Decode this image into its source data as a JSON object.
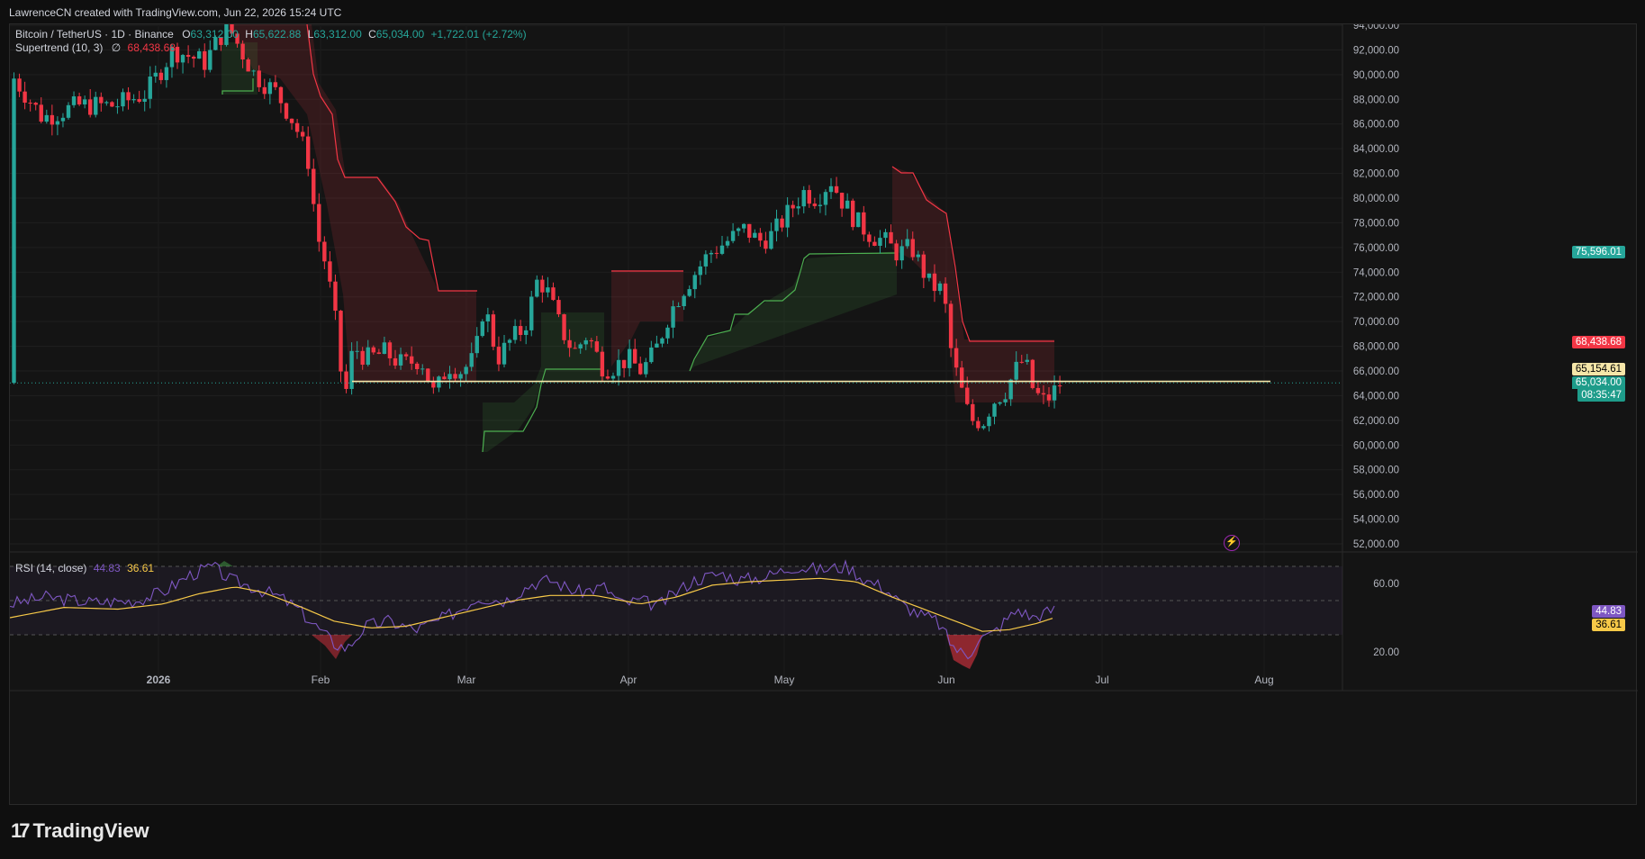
{
  "header": {
    "attribution": "LawrenceCN created with TradingView.com, Jun 22, 2026 15:24 UTC"
  },
  "symbol": {
    "name": "Bitcoin / TetherUS · 1D · Binance",
    "open_label": "O",
    "open": "63,312.00",
    "high_label": "H",
    "high": "65,622.88",
    "low_label": "L",
    "low": "63,312.00",
    "close_label": "C",
    "close": "65,034.00",
    "change": "+1,722.01 (+2.72%)"
  },
  "supertrend": {
    "label": "Supertrend (10, 3)",
    "symbol": "∅",
    "value": "68,438.68"
  },
  "rsi": {
    "label": "RSI (14, close)",
    "value1": "44.83",
    "value2": "36.61"
  },
  "price_axis": {
    "ticks": [
      "94,000.00",
      "92,000.00",
      "90,000.00",
      "88,000.00",
      "86,000.00",
      "84,000.00",
      "82,000.00",
      "80,000.00",
      "78,000.00",
      "76,000.00",
      "74,000.00",
      "72,000.00",
      "70,000.00",
      "68,000.00",
      "66,000.00",
      "64,000.00",
      "62,000.00",
      "60,000.00",
      "58,000.00",
      "56,000.00",
      "54,000.00",
      "52,000.00"
    ],
    "tags": {
      "green_line": "75,596.01",
      "supertrend": "68,438.68",
      "horizontal": "65,154.61",
      "last_price": "65,034.00",
      "countdown": "08:35:47"
    }
  },
  "rsi_axis": {
    "ticks": [
      "60.00",
      "20.00"
    ]
  },
  "time_axis": {
    "labels": [
      "2026",
      "Feb",
      "Mar",
      "Apr",
      "May",
      "Jun",
      "Jul",
      "Aug"
    ]
  },
  "colors": {
    "up": "#26a69a",
    "down": "#f23645",
    "supertrend_up": "#4caf50",
    "supertrend_down": "#f23645",
    "rsi": "#7e57c2",
    "rsi_ma": "#f7c948",
    "hline": "#f5e6a8"
  },
  "footer": {
    "brand": "TradingView"
  },
  "chart_data": {
    "type": "candlestick",
    "symbol": "BTCUSDT",
    "interval": "1D",
    "ylim": [
      51000,
      94500
    ],
    "horizontal_line": 65154.61,
    "last_price": 65034.0,
    "supertrend_value": 68438.68,
    "rsi": {
      "value": 44.83,
      "ma": 36.61,
      "bands": [
        70,
        50,
        30
      ]
    }
  }
}
